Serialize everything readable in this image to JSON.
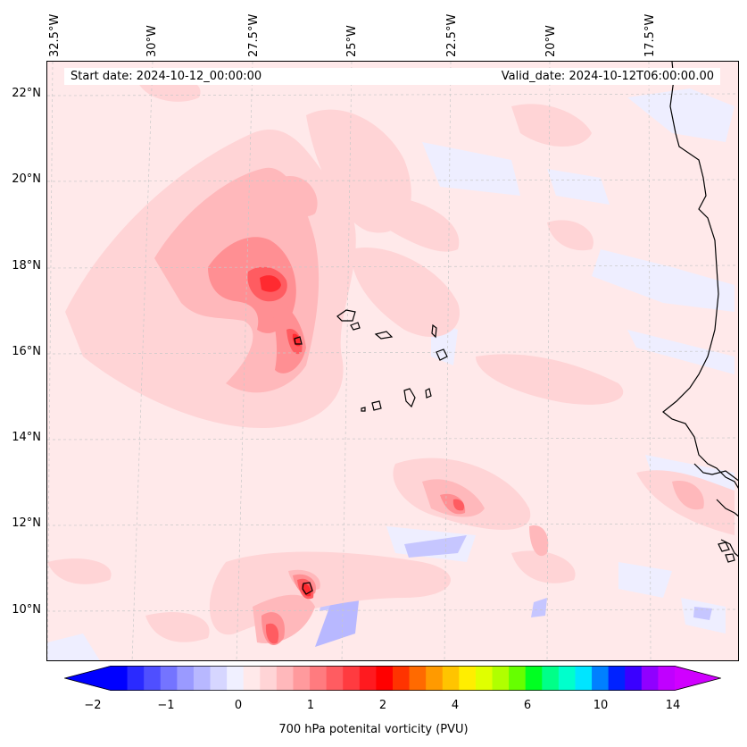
{
  "header": {
    "start_date": "Start date: 2024-10-12_00:00:00",
    "valid_date": "Valid_date: 2024-10-12T06:00:00.00"
  },
  "longitude_labels": [
    "32.5°W",
    "30°W",
    "27.5°W",
    "25°W",
    "22.5°W",
    "20°W",
    "17.5°W"
  ],
  "latitude_labels": [
    "22°N",
    "20°N",
    "18°N",
    "16°N",
    "14°N",
    "12°N",
    "10°N"
  ],
  "colorbar": {
    "title": "700 hPa potenital vorticity (PVU)",
    "tick_labels": [
      "−2",
      "−1",
      "0",
      "1",
      "2",
      "4",
      "6",
      "10",
      "14"
    ],
    "colors": [
      "#0000ff",
      "#2a2aff",
      "#4f4fff",
      "#7474ff",
      "#9a9aff",
      "#b8b8ff",
      "#d6d6ff",
      "#f0f0ff",
      "#ffe9ea",
      "#ffd4d6",
      "#ffb8bb",
      "#ff9a9d",
      "#ff7b7f",
      "#ff5c61",
      "#ff3b40",
      "#ff1a1f",
      "#ff0000",
      "#ff3300",
      "#ff6a00",
      "#ff9a00",
      "#ffc400",
      "#ffee00",
      "#e0ff00",
      "#b0ff00",
      "#66ff00",
      "#00ff22",
      "#00ff88",
      "#00ffcc",
      "#00e5ff",
      "#0080ff",
      "#0022ff",
      "#3a00ff",
      "#9000ff",
      "#c000ff"
    ],
    "extend_min_color": "#0000ff",
    "extend_max_color": "#d000ff"
  },
  "map": {
    "background_color": "#ffe9ea",
    "coastline_color": "#000000",
    "gridline_color": "#b0b0b0"
  }
}
